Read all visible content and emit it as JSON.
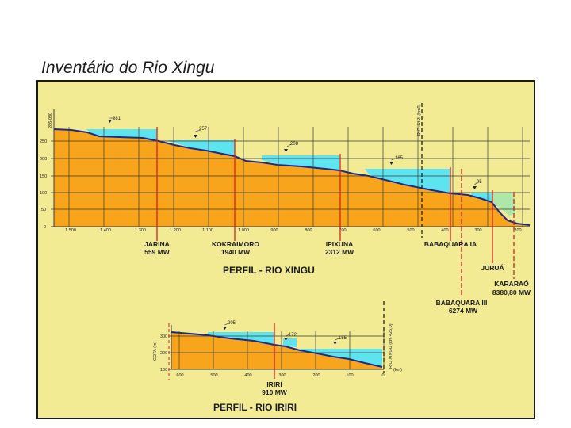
{
  "page": {
    "title": "Inventário do Rio Xingu"
  },
  "xingu": {
    "title": "PERFIL - RIO XINGU",
    "y_ticks": [
      "250",
      "200",
      "150",
      "100",
      "50",
      "0"
    ],
    "x_ticks": [
      "1.500",
      "1.400",
      "1.300",
      "1.200",
      "1.100",
      "1.000",
      "900",
      "800",
      "700",
      "600",
      "500",
      "400",
      "300",
      "200"
    ],
    "axis_top_label": "286-080",
    "vertical_marker_label": "RIO IRIRI (km0)",
    "levels": [
      "281",
      "257",
      "208",
      "165",
      "95"
    ],
    "dams": [
      {
        "name": "JARINA",
        "power": "559  MW"
      },
      {
        "name": "KOKRAIMORO",
        "power": "1940  MW"
      },
      {
        "name": "IPIXUNA",
        "power": "2312  MW"
      },
      {
        "name": "BABAQUARA  IA",
        "power": ""
      },
      {
        "name": "JURUÁ",
        "power": ""
      },
      {
        "name": "KARARAÔ",
        "power": "8380,80  MW"
      },
      {
        "name": "BABAQUARA  III",
        "power": "6274  MW"
      }
    ]
  },
  "iriri": {
    "title": "PERFIL - RIO IRIRI",
    "y_axis_label": "COTA (m)",
    "y_ticks": [
      "300",
      "200",
      "100"
    ],
    "x_ticks": [
      "600",
      "500",
      "400",
      "300",
      "200",
      "100",
      "0"
    ],
    "x_unit": "(km)",
    "vertical_marker_label": "RIO XINGU (km 426,0)",
    "levels": [
      "205",
      "172",
      "155"
    ],
    "dams": [
      {
        "name": "IRIRI",
        "power": "910  MW"
      }
    ]
  }
}
